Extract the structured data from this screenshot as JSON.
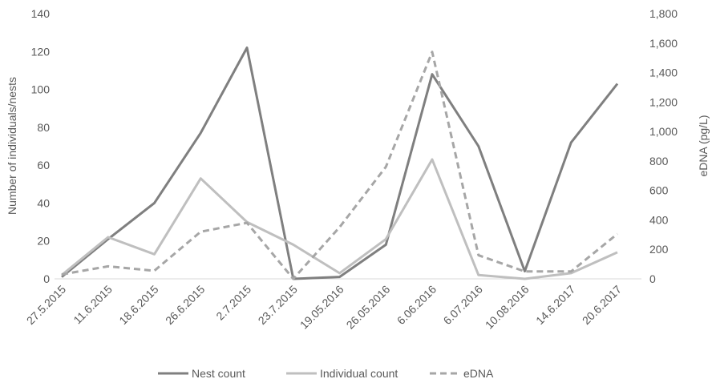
{
  "chart_data": {
    "type": "line",
    "categories": [
      "27.5.2015",
      "11.6.2015",
      "18.6.2015",
      "26.6.2015",
      "2.7.2015",
      "23.7.2015",
      "19.05.2016",
      "26.05.2016",
      "6.06.2016",
      "6.07.2016",
      "10.08.2016",
      "14.6.2017",
      "20.6.2017"
    ],
    "xlabel": "",
    "ylabel": "Number of individuals/nests",
    "y2label": "eDNA (pg/L)",
    "ylim": [
      0,
      140
    ],
    "y2lim": [
      0,
      1800
    ],
    "yticks": [
      "0",
      "20",
      "40",
      "60",
      "80",
      "100",
      "120",
      "140"
    ],
    "y2ticks": [
      "0",
      "200",
      "400",
      "600",
      "800",
      "1,000",
      "1,200",
      "1,400",
      "1,600",
      "1,800"
    ],
    "grid": false,
    "legend_position": "bottom",
    "series": [
      {
        "name": "Nest count",
        "axis": "left",
        "style": "solid",
        "color": "#7f7f7f",
        "values": [
          1,
          21,
          40,
          77,
          122,
          0,
          1,
          18,
          108,
          70,
          4,
          72,
          103
        ]
      },
      {
        "name": "Individual count",
        "axis": "left",
        "style": "solid",
        "color": "#bfbfbf",
        "values": [
          2,
          22,
          13,
          53,
          30,
          18,
          3,
          21,
          63,
          2,
          0,
          3,
          14
        ]
      },
      {
        "name": "eDNA",
        "axis": "right",
        "style": "dashed",
        "color": "#a6a6a6",
        "values": [
          30,
          85,
          55,
          320,
          380,
          0,
          350,
          760,
          1540,
          160,
          50,
          50,
          305
        ]
      }
    ]
  }
}
